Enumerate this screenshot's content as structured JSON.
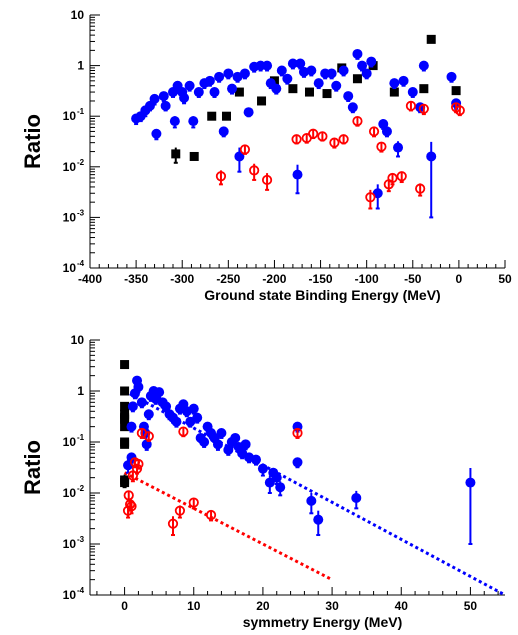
{
  "colors": {
    "black_series": "#000000",
    "blue_series": "#0000ff",
    "red_series": "#ff0000",
    "blue_fit": "#0000ff",
    "red_fit": "#ff0000"
  },
  "chart_data": [
    {
      "type": "scatter",
      "title": "",
      "xlabel": "Ground state Binding Energy (MeV)",
      "ylabel": "Ratio",
      "xlim": [
        -400,
        50
      ],
      "ylim": [
        0.0001,
        10
      ],
      "yscale": "log",
      "xticks": [
        -400,
        -350,
        -300,
        -250,
        -200,
        -150,
        -100,
        -50,
        0,
        50
      ],
      "xtick_labels": [
        "-400",
        "-350",
        "-300",
        "-250",
        "-200",
        "-150",
        "-100",
        "-50",
        "0",
        "50"
      ],
      "yticks": [
        0.0001,
        0.001,
        0.01,
        0.1,
        1,
        10
      ],
      "ytick_labels": [
        [
          "10",
          "-4"
        ],
        [
          "10",
          "-3"
        ],
        [
          "10",
          "-2"
        ],
        [
          "10",
          "-1"
        ],
        [
          "1",
          ""
        ],
        [
          "10",
          ""
        ]
      ],
      "grid": false,
      "series": [
        {
          "marker": "filled-square",
          "color": "#000000",
          "points": [
            [
              -307,
              0.018,
              0.006
            ],
            [
              -287,
              0.016,
              0
            ],
            [
              -268,
              0.1,
              0
            ],
            [
              -252,
              0.1,
              0
            ],
            [
              -238,
              0.3,
              0
            ],
            [
              -214,
              0.2,
              0
            ],
            [
              -200,
              0.5,
              0
            ],
            [
              -180,
              0.35,
              0
            ],
            [
              -162,
              0.3,
              0
            ],
            [
              -143,
              0.28,
              0
            ],
            [
              -127,
              0.9,
              0
            ],
            [
              -110,
              0.55,
              0
            ],
            [
              -93,
              1.0,
              0
            ],
            [
              -70,
              0.3,
              0
            ],
            [
              -38,
              0.35,
              0
            ],
            [
              -30,
              3.3,
              0
            ],
            [
              -3,
              0.32,
              0
            ]
          ]
        },
        {
          "marker": "filled-circle",
          "color": "#0000ff",
          "points": [
            [
              -350,
              0.09,
              0.02
            ],
            [
              -345,
              0.1,
              0.02
            ],
            [
              -340,
              0.13,
              0.03
            ],
            [
              -335,
              0.16,
              0.03
            ],
            [
              -330,
              0.22,
              0.05
            ],
            [
              -328,
              0.045,
              0.01
            ],
            [
              -320,
              0.25,
              0.05
            ],
            [
              -318,
              0.16,
              0.03
            ],
            [
              -310,
              0.3,
              0.06
            ],
            [
              -308,
              0.08,
              0.02
            ],
            [
              -305,
              0.4,
              0.08
            ],
            [
              -300,
              0.3,
              0.06
            ],
            [
              -298,
              0.23,
              0.05
            ],
            [
              -292,
              0.4,
              0.08
            ],
            [
              -288,
              0.08,
              0.02
            ],
            [
              -282,
              0.3,
              0.06
            ],
            [
              -276,
              0.45,
              0.09
            ],
            [
              -270,
              0.5,
              0.1
            ],
            [
              -265,
              0.3,
              0.06
            ],
            [
              -260,
              0.6,
              0.12
            ],
            [
              -255,
              0.05,
              0.01
            ],
            [
              -250,
              0.7,
              0.14
            ],
            [
              -246,
              0.35,
              0.07
            ],
            [
              -240,
              0.6,
              0.12
            ],
            [
              -238,
              0.016,
              0.008
            ],
            [
              -232,
              0.7,
              0.14
            ],
            [
              -228,
              0.12,
              0.02
            ],
            [
              -222,
              0.95,
              0.19
            ],
            [
              -215,
              1.0,
              0.2
            ],
            [
              -208,
              1.0,
              0.2
            ],
            [
              -204,
              0.45,
              0.09
            ],
            [
              -198,
              0.35,
              0.07
            ],
            [
              -192,
              0.8,
              0.16
            ],
            [
              -186,
              0.55,
              0.11
            ],
            [
              -180,
              1.1,
              0.22
            ],
            [
              -175,
              0.007,
              0.004
            ],
            [
              -172,
              1.1,
              0.22
            ],
            [
              -168,
              0.75,
              0.15
            ],
            [
              -160,
              0.8,
              0.16
            ],
            [
              -152,
              0.45,
              0.09
            ],
            [
              -145,
              0.7,
              0.14
            ],
            [
              -138,
              0.7,
              0.14
            ],
            [
              -133,
              0.4,
              0.08
            ],
            [
              -125,
              0.8,
              0.16
            ],
            [
              -120,
              0.25,
              0.05
            ],
            [
              -115,
              0.15,
              0.03
            ],
            [
              -110,
              1.7,
              0.34
            ],
            [
              -105,
              1.0,
              0.2
            ],
            [
              -100,
              0.7,
              0.14
            ],
            [
              -95,
              1.2,
              0.24
            ],
            [
              -88,
              0.003,
              0.0015
            ],
            [
              -82,
              0.07,
              0.014
            ],
            [
              -78,
              0.05,
              0.01
            ],
            [
              -70,
              0.45,
              0.09
            ],
            [
              -66,
              0.024,
              0.008
            ],
            [
              -60,
              0.5,
              0.1
            ],
            [
              -50,
              0.3,
              0.06
            ],
            [
              -42,
              0.15,
              0.03
            ],
            [
              -38,
              1.0,
              0.2
            ],
            [
              -30,
              0.016,
              0.015
            ],
            [
              -8,
              0.6,
              0.12
            ],
            [
              -3,
              0.18,
              0.04
            ]
          ]
        },
        {
          "marker": "open-circle",
          "color": "#ff0000",
          "points": [
            [
              -258,
              0.0065,
              0.002
            ],
            [
              -232,
              0.022,
              0.004
            ],
            [
              -222,
              0.0085,
              0.003
            ],
            [
              -208,
              0.0055,
              0.002
            ],
            [
              -176,
              0.035,
              0.006
            ],
            [
              -165,
              0.037,
              0.007
            ],
            [
              -158,
              0.045,
              0.008
            ],
            [
              -148,
              0.04,
              0.007
            ],
            [
              -135,
              0.03,
              0.006
            ],
            [
              -125,
              0.035,
              0.006
            ],
            [
              -110,
              0.08,
              0.015
            ],
            [
              -96,
              0.0025,
              0.001
            ],
            [
              -92,
              0.05,
              0.01
            ],
            [
              -84,
              0.025,
              0.005
            ],
            [
              -76,
              0.0045,
              0.0012
            ],
            [
              -72,
              0.006,
              0.0015
            ],
            [
              -62,
              0.0065,
              0.0015
            ],
            [
              -52,
              0.16,
              0.03
            ],
            [
              -42,
              0.0037,
              0.001
            ],
            [
              -38,
              0.14,
              0.03
            ],
            [
              -3,
              0.15,
              0.03
            ],
            [
              1,
              0.13,
              0.025
            ]
          ]
        }
      ]
    },
    {
      "type": "scatter",
      "title": "",
      "xlabel": "symmetry Energy (MeV)",
      "ylabel": "Ratio",
      "xlim": [
        -5,
        55
      ],
      "ylim": [
        0.0001,
        10
      ],
      "yscale": "log",
      "xticks": [
        0,
        10,
        20,
        30,
        40,
        50
      ],
      "xtick_labels": [
        "0",
        "10",
        "20",
        "30",
        "40",
        "50"
      ],
      "yticks": [
        0.0001,
        0.001,
        0.01,
        0.1,
        1,
        10
      ],
      "ytick_labels": [
        [
          "10",
          "-4"
        ],
        [
          "10",
          "-3"
        ],
        [
          "10",
          "-2"
        ],
        [
          "10",
          "-1"
        ],
        [
          "1",
          ""
        ],
        [
          "10",
          ""
        ]
      ],
      "grid": false,
      "series": [
        {
          "marker": "filled-square",
          "color": "#000000",
          "points": [
            [
              0,
              3.3,
              0
            ],
            [
              0,
              1.0,
              0
            ],
            [
              0,
              0.5,
              0
            ],
            [
              0,
              0.35,
              0
            ],
            [
              0,
              0.3,
              0
            ],
            [
              0,
              0.28,
              0
            ],
            [
              0,
              0.2,
              0
            ],
            [
              0,
              0.1,
              0
            ],
            [
              0,
              0.09,
              0
            ],
            [
              0,
              0.018,
              0.005
            ],
            [
              0,
              0.016,
              0
            ]
          ]
        },
        {
          "marker": "filled-circle",
          "color": "#0000ff",
          "points": [
            [
              0.5,
              0.035,
              0.01
            ],
            [
              1,
              0.05,
              0.01
            ],
            [
              1,
              0.2,
              0.04
            ],
            [
              1.2,
              0.5,
              0.1
            ],
            [
              1.5,
              0.9,
              0.18
            ],
            [
              1.8,
              1.6,
              0.32
            ],
            [
              2,
              1.2,
              0.24
            ],
            [
              2.5,
              0.6,
              0.12
            ],
            [
              2.8,
              0.2,
              0.04
            ],
            [
              3,
              0.15,
              0.03
            ],
            [
              3.2,
              0.09,
              0.02
            ],
            [
              3.5,
              0.35,
              0.07
            ],
            [
              3.8,
              0.8,
              0.16
            ],
            [
              4.2,
              1.0,
              0.2
            ],
            [
              4.5,
              0.7,
              0.14
            ],
            [
              5,
              0.95,
              0.19
            ],
            [
              5.5,
              0.6,
              0.12
            ],
            [
              6,
              0.5,
              0.1
            ],
            [
              6.5,
              0.35,
              0.07
            ],
            [
              7,
              0.3,
              0.06
            ],
            [
              7.5,
              0.25,
              0.05
            ],
            [
              8,
              0.45,
              0.09
            ],
            [
              8.5,
              0.55,
              0.11
            ],
            [
              9,
              0.4,
              0.08
            ],
            [
              9.5,
              0.25,
              0.05
            ],
            [
              10,
              0.45,
              0.09
            ],
            [
              10.5,
              0.3,
              0.06
            ],
            [
              11,
              0.12,
              0.02
            ],
            [
              11.5,
              0.1,
              0.02
            ],
            [
              12,
              0.2,
              0.04
            ],
            [
              12.5,
              0.15,
              0.03
            ],
            [
              13,
              0.12,
              0.02
            ],
            [
              13.5,
              0.09,
              0.02
            ],
            [
              14,
              0.15,
              0.03
            ],
            [
              15,
              0.07,
              0.014
            ],
            [
              15.5,
              0.1,
              0.02
            ],
            [
              16,
              0.12,
              0.02
            ],
            [
              16.5,
              0.08,
              0.016
            ],
            [
              17,
              0.06,
              0.012
            ],
            [
              17.5,
              0.09,
              0.018
            ],
            [
              18,
              0.05,
              0.01
            ],
            [
              19,
              0.045,
              0.009
            ],
            [
              20,
              0.03,
              0.008
            ],
            [
              21,
              0.016,
              0.006
            ],
            [
              21.5,
              0.025,
              0.006
            ],
            [
              22,
              0.02,
              0.005
            ],
            [
              22.5,
              0.013,
              0.004
            ],
            [
              25,
              0.2,
              0.04
            ],
            [
              25,
              0.04,
              0.008
            ],
            [
              27,
              0.007,
              0.003
            ],
            [
              28,
              0.003,
              0.0015
            ],
            [
              33.5,
              0.008,
              0.003
            ],
            [
              50,
              0.016,
              0.015
            ]
          ]
        },
        {
          "marker": "open-circle",
          "color": "#ff0000",
          "points": [
            [
              0.5,
              0.0045,
              0.0012
            ],
            [
              0.6,
              0.009,
              0.002
            ],
            [
              0.8,
              0.006,
              0.0015
            ],
            [
              1,
              0.0055,
              0.0015
            ],
            [
              1.2,
              0.022,
              0.005
            ],
            [
              1.5,
              0.04,
              0.008
            ],
            [
              1.8,
              0.03,
              0.006
            ],
            [
              2,
              0.037,
              0.007
            ],
            [
              2.5,
              0.15,
              0.03
            ],
            [
              3.5,
              0.13,
              0.025
            ],
            [
              7,
              0.0025,
              0.001
            ],
            [
              8,
              0.0045,
              0.0012
            ],
            [
              8.5,
              0.16,
              0.03
            ],
            [
              10,
              0.0065,
              0.0015
            ],
            [
              12.5,
              0.0037,
              0.0008
            ],
            [
              25,
              0.15,
              0.03
            ]
          ]
        }
      ],
      "fits": [
        {
          "color": "#0000ff",
          "from": [
            0,
            1.0
          ],
          "to": [
            55,
            0.0001
          ]
        },
        {
          "color": "#ff0000",
          "from": [
            0,
            0.025
          ],
          "to": [
            30,
            0.0002
          ]
        }
      ]
    }
  ]
}
